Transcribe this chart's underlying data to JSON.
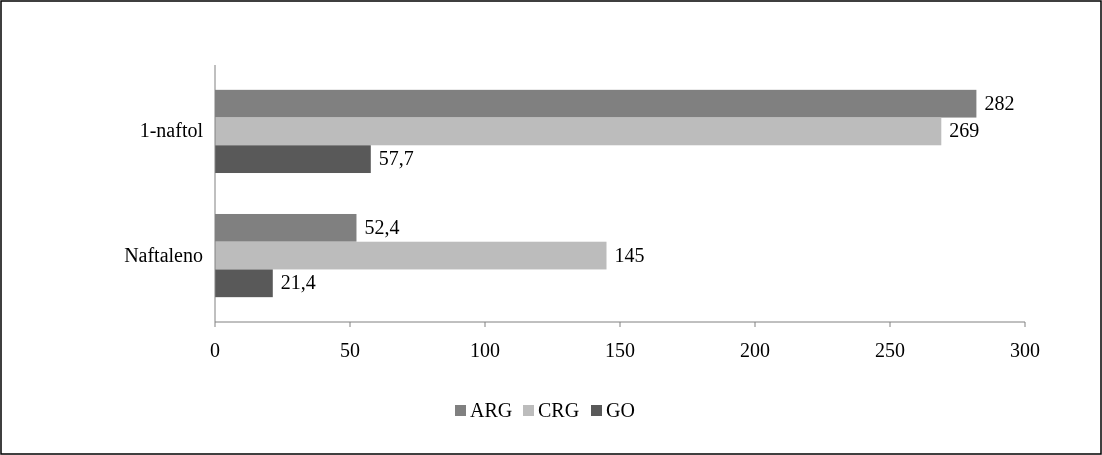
{
  "chart_data": {
    "type": "bar",
    "orientation": "horizontal",
    "categories": [
      "1-naftol",
      "Naftaleno"
    ],
    "series": [
      {
        "name": "ARG",
        "color": "#808080",
        "values": [
          282,
          52.4
        ],
        "value_labels": [
          "282",
          "52,4"
        ]
      },
      {
        "name": "CRG",
        "color": "#bcbcbc",
        "values": [
          269,
          145
        ],
        "value_labels": [
          "269",
          "145"
        ]
      },
      {
        "name": "GO",
        "color": "#595959",
        "values": [
          57.7,
          21.4
        ],
        "value_labels": [
          "57,7",
          "21,4"
        ]
      }
    ],
    "xlim": [
      0,
      300
    ],
    "xticks": [
      0,
      50,
      100,
      150,
      200,
      250,
      300
    ],
    "grid": false,
    "legend": "bottom"
  }
}
